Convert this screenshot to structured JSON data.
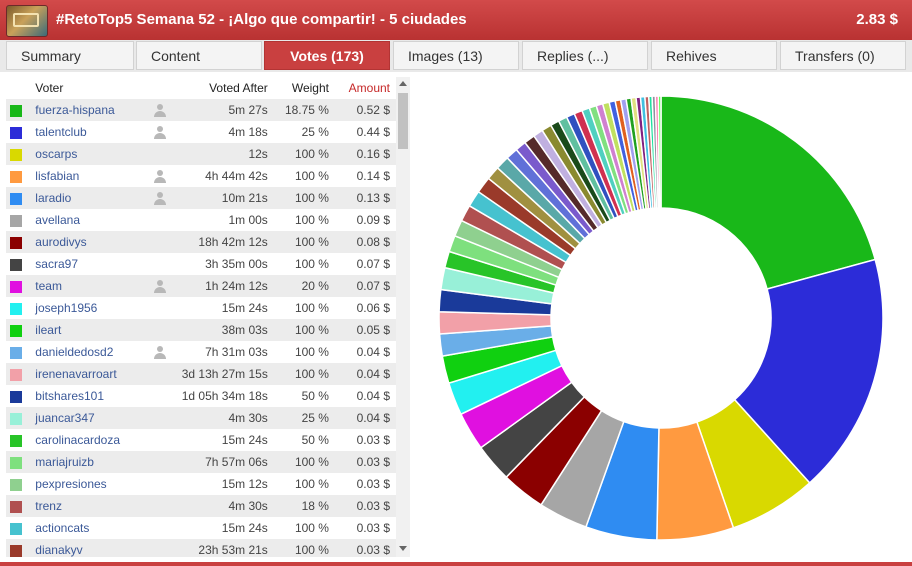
{
  "header": {
    "title": "#RetoTop5 Semana 52 - ¡Algo que compartir! - 5 ciudades",
    "payout": "2.83 $"
  },
  "tabs": [
    {
      "label": "Summary",
      "active": false
    },
    {
      "label": "Content",
      "active": false
    },
    {
      "label": "Votes (173)",
      "active": true
    },
    {
      "label": "Images (13)",
      "active": false
    },
    {
      "label": "Replies (...)",
      "active": false
    },
    {
      "label": "Rehives",
      "active": false
    },
    {
      "label": "Transfers (0)",
      "active": false
    }
  ],
  "table": {
    "headers": {
      "voter": "Voter",
      "voted_after": "Voted After",
      "weight": "Weight",
      "amount": "Amount"
    },
    "rows": [
      {
        "voter": "fuerza-hispana",
        "voted_after": "5m 27s",
        "weight": "18.75 %",
        "amount": "0.52 $",
        "color": "#19b819",
        "user_icon": true
      },
      {
        "voter": "talentclub",
        "voted_after": "4m 18s",
        "weight": "25 %",
        "amount": "0.44 $",
        "color": "#2c2cd8",
        "user_icon": true
      },
      {
        "voter": "oscarps",
        "voted_after": "12s",
        "weight": "100 %",
        "amount": "0.16 $",
        "color": "#d9d900",
        "user_icon": false
      },
      {
        "voter": "lisfabian",
        "voted_after": "4h 44m 42s",
        "weight": "100 %",
        "amount": "0.14 $",
        "color": "#ff9a40",
        "user_icon": true
      },
      {
        "voter": "laradio",
        "voted_after": "10m 21s",
        "weight": "100 %",
        "amount": "0.13 $",
        "color": "#2f8cf2",
        "user_icon": true
      },
      {
        "voter": "avellana",
        "voted_after": "1m 00s",
        "weight": "100 %",
        "amount": "0.09 $",
        "color": "#a6a6a6",
        "user_icon": false
      },
      {
        "voter": "aurodivys",
        "voted_after": "18h 42m 12s",
        "weight": "100 %",
        "amount": "0.08 $",
        "color": "#8b0000",
        "user_icon": false
      },
      {
        "voter": "sacra97",
        "voted_after": "3h 35m 00s",
        "weight": "100 %",
        "amount": "0.07 $",
        "color": "#444444",
        "user_icon": false
      },
      {
        "voter": "team",
        "voted_after": "1h 24m 12s",
        "weight": "20 %",
        "amount": "0.07 $",
        "color": "#e010e0",
        "user_icon": true
      },
      {
        "voter": "joseph1956",
        "voted_after": "15m 24s",
        "weight": "100 %",
        "amount": "0.06 $",
        "color": "#22f0f0",
        "user_icon": false
      },
      {
        "voter": "ileart",
        "voted_after": "38m 03s",
        "weight": "100 %",
        "amount": "0.05 $",
        "color": "#10d010",
        "user_icon": false
      },
      {
        "voter": "danieldedosd2",
        "voted_after": "7h 31m 03s",
        "weight": "100 %",
        "amount": "0.04 $",
        "color": "#6aaee8",
        "user_icon": true
      },
      {
        "voter": "irenenavarroart",
        "voted_after": "3d 13h 27m 15s",
        "weight": "100 %",
        "amount": "0.04 $",
        "color": "#f2a0a8",
        "user_icon": false
      },
      {
        "voter": "bitshares101",
        "voted_after": "1d 05h 34m 18s",
        "weight": "50 %",
        "amount": "0.04 $",
        "color": "#1a3a9a",
        "user_icon": false
      },
      {
        "voter": "juancar347",
        "voted_after": "4m 30s",
        "weight": "25 %",
        "amount": "0.04 $",
        "color": "#98f0d8",
        "user_icon": false
      },
      {
        "voter": "carolinacardoza",
        "voted_after": "15m 24s",
        "weight": "50 %",
        "amount": "0.03 $",
        "color": "#28c428",
        "user_icon": false
      },
      {
        "voter": "mariajruizb",
        "voted_after": "7h 57m 06s",
        "weight": "100 %",
        "amount": "0.03 $",
        "color": "#7ee07e",
        "user_icon": false
      },
      {
        "voter": "pexpresiones",
        "voted_after": "15m 12s",
        "weight": "100 %",
        "amount": "0.03 $",
        "color": "#8fd08f",
        "user_icon": false
      },
      {
        "voter": "trenz",
        "voted_after": "4m 30s",
        "weight": "18 %",
        "amount": "0.03 $",
        "color": "#b05050",
        "user_icon": false
      },
      {
        "voter": "actioncats",
        "voted_after": "15m 24s",
        "weight": "100 %",
        "amount": "0.03 $",
        "color": "#46c2cf",
        "user_icon": false
      },
      {
        "voter": "dianakyv",
        "voted_after": "23h 53m 21s",
        "weight": "100 %",
        "amount": "0.03 $",
        "color": "#9a3a2a",
        "user_icon": false
      }
    ]
  },
  "chart_data": {
    "type": "pie",
    "donut": true,
    "named_slices": [
      {
        "voter": "fuerza-hispana",
        "value": 0.52,
        "color": "#19b819"
      },
      {
        "voter": "talentclub",
        "value": 0.44,
        "color": "#2c2cd8"
      },
      {
        "voter": "oscarps",
        "value": 0.16,
        "color": "#d9d900"
      },
      {
        "voter": "lisfabian",
        "value": 0.14,
        "color": "#ff9a40"
      },
      {
        "voter": "laradio",
        "value": 0.13,
        "color": "#2f8cf2"
      },
      {
        "voter": "avellana",
        "value": 0.09,
        "color": "#a6a6a6"
      },
      {
        "voter": "aurodivys",
        "value": 0.08,
        "color": "#8b0000"
      },
      {
        "voter": "sacra97",
        "value": 0.07,
        "color": "#444444"
      },
      {
        "voter": "team",
        "value": 0.07,
        "color": "#e010e0"
      },
      {
        "voter": "joseph1956",
        "value": 0.06,
        "color": "#22f0f0"
      },
      {
        "voter": "ileart",
        "value": 0.05,
        "color": "#10d010"
      },
      {
        "voter": "danieldedosd2",
        "value": 0.04,
        "color": "#6aaee8"
      },
      {
        "voter": "irenenavarroart",
        "value": 0.04,
        "color": "#f2a0a8"
      },
      {
        "voter": "bitshares101",
        "value": 0.04,
        "color": "#1a3a9a"
      },
      {
        "voter": "juancar347",
        "value": 0.04,
        "color": "#98f0d8"
      },
      {
        "voter": "carolinacardoza",
        "value": 0.03,
        "color": "#28c428"
      },
      {
        "voter": "mariajruizb",
        "value": 0.03,
        "color": "#7ee07e"
      },
      {
        "voter": "pexpresiones",
        "value": 0.03,
        "color": "#8fd08f"
      },
      {
        "voter": "trenz",
        "value": 0.03,
        "color": "#b05050"
      },
      {
        "voter": "actioncats",
        "value": 0.03,
        "color": "#46c2cf"
      },
      {
        "voter": "dianakyv",
        "value": 0.03,
        "color": "#9a3a2a"
      }
    ],
    "other_slices": [
      {
        "value": 0.025,
        "color": "#a09040"
      },
      {
        "value": 0.025,
        "color": "#5aa8a8"
      },
      {
        "value": 0.022,
        "color": "#6070d8"
      },
      {
        "value": 0.02,
        "color": "#7a5acc"
      },
      {
        "value": 0.02,
        "color": "#552a2a"
      },
      {
        "value": 0.018,
        "color": "#c0b0e0"
      },
      {
        "value": 0.018,
        "color": "#8a8a30"
      },
      {
        "value": 0.016,
        "color": "#1a4a1a"
      },
      {
        "value": 0.016,
        "color": "#60c0a0"
      },
      {
        "value": 0.015,
        "color": "#3050c0"
      },
      {
        "value": 0.015,
        "color": "#d03050"
      },
      {
        "value": 0.014,
        "color": "#50d0c0"
      },
      {
        "value": 0.013,
        "color": "#80e080"
      },
      {
        "value": 0.012,
        "color": "#d080d0"
      },
      {
        "value": 0.012,
        "color": "#c0e060"
      },
      {
        "value": 0.011,
        "color": "#4060e0"
      },
      {
        "value": 0.01,
        "color": "#e06020"
      },
      {
        "value": 0.01,
        "color": "#a0a0f0"
      },
      {
        "value": 0.009,
        "color": "#20a020"
      },
      {
        "value": 0.009,
        "color": "#e0e080"
      },
      {
        "value": 0.008,
        "color": "#802080"
      },
      {
        "value": 0.008,
        "color": "#40c0e0"
      },
      {
        "value": 0.007,
        "color": "#c06060"
      },
      {
        "value": 0.006,
        "color": "#20e0a0"
      },
      {
        "value": 0.006,
        "color": "#9090a0"
      },
      {
        "value": 0.005,
        "color": "#ff60a0"
      },
      {
        "value": 0.005,
        "color": "#60ff60"
      }
    ]
  }
}
